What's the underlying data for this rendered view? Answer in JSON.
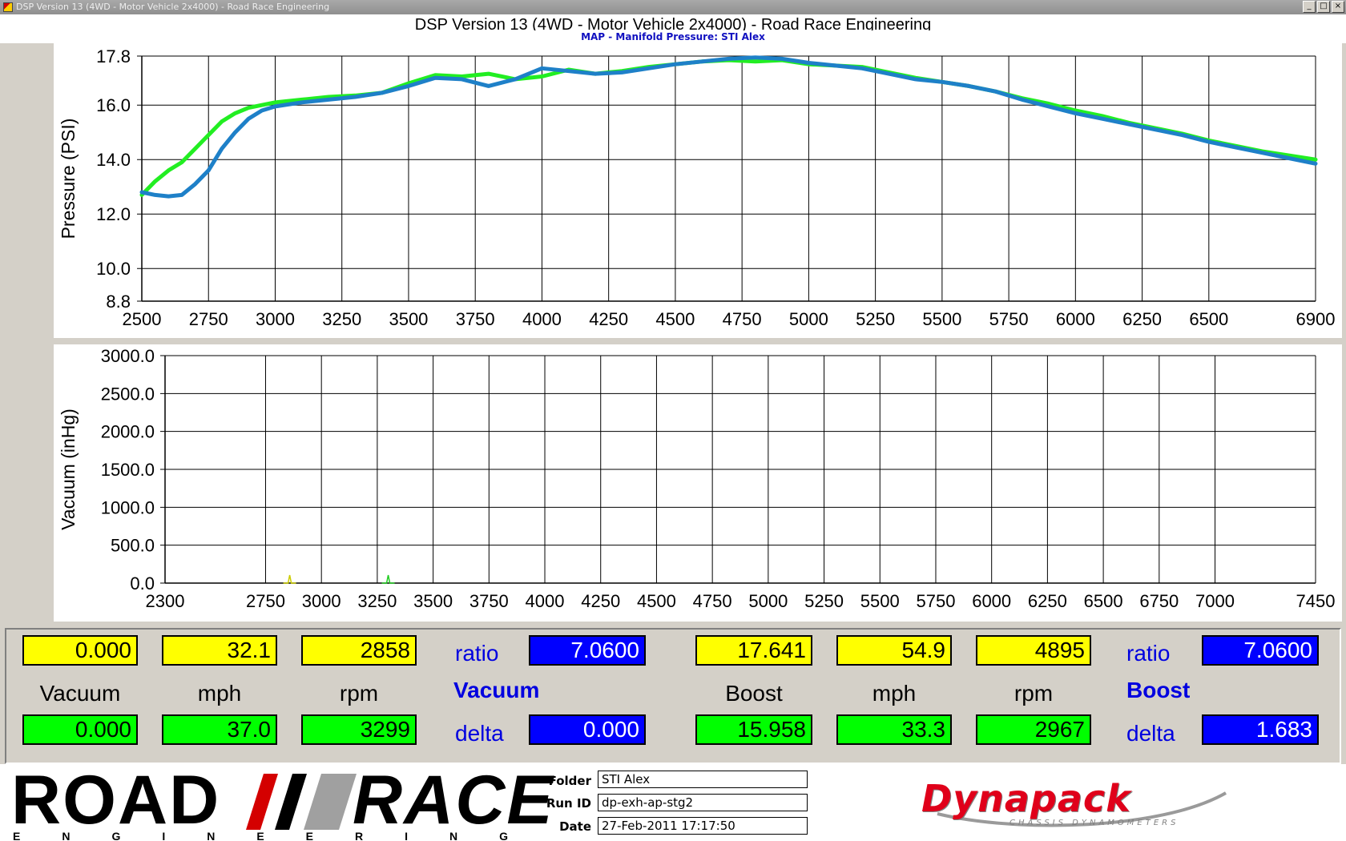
{
  "window": {
    "title": "DSP Version 13 (4WD - Motor Vehicle 2x4000) - Road Race Engineering",
    "buttons": [
      "_",
      "□",
      "×"
    ]
  },
  "main_title": "DSP Version 13 (4WD - Motor Vehicle 2x4000) - Road Race Engineering",
  "plot_title": "MAP - Manifold Pressure: STI Alex",
  "chart_data": [
    {
      "type": "line",
      "ylabel": "Pressure (PSI)",
      "xlim": [
        2500,
        6900
      ],
      "ylim": [
        8.8,
        17.8
      ],
      "x_ticks": [
        "2500",
        "2750",
        "3000",
        "3250",
        "3500",
        "3750",
        "4000",
        "4250",
        "4500",
        "4750",
        "5000",
        "5250",
        "5500",
        "5750",
        "6000",
        "6250",
        "6500",
        "6900"
      ],
      "y_ticks": [
        "17.8",
        "16.0",
        "14.0",
        "12.0",
        "10.0",
        "8.8"
      ],
      "series": [
        {
          "color": "#22ee22",
          "x": [
            2500,
            2550,
            2600,
            2650,
            2700,
            2750,
            2800,
            2850,
            2900,
            2950,
            3000,
            3100,
            3200,
            3300,
            3400,
            3500,
            3600,
            3700,
            3800,
            3900,
            4000,
            4100,
            4200,
            4300,
            4400,
            4500,
            4600,
            4700,
            4800,
            4900,
            5000,
            5100,
            5200,
            5300,
            5400,
            5500,
            5600,
            5700,
            5800,
            5900,
            6000,
            6100,
            6200,
            6300,
            6400,
            6500,
            6600,
            6700,
            6800,
            6900
          ],
          "values": [
            12.7,
            13.2,
            13.6,
            13.9,
            14.4,
            14.9,
            15.4,
            15.7,
            15.9,
            16.0,
            16.1,
            16.2,
            16.3,
            16.35,
            16.45,
            16.8,
            17.1,
            17.05,
            17.15,
            16.95,
            17.05,
            17.3,
            17.15,
            17.25,
            17.4,
            17.5,
            17.6,
            17.65,
            17.6,
            17.65,
            17.5,
            17.45,
            17.4,
            17.2,
            17.0,
            16.85,
            16.7,
            16.5,
            16.25,
            16.05,
            15.8,
            15.6,
            15.35,
            15.15,
            14.95,
            14.7,
            14.5,
            14.3,
            14.15,
            14.0
          ]
        },
        {
          "color": "#1e80c8",
          "x": [
            2500,
            2550,
            2600,
            2650,
            2700,
            2750,
            2800,
            2850,
            2900,
            2950,
            3000,
            3100,
            3200,
            3300,
            3400,
            3500,
            3600,
            3700,
            3800,
            3900,
            4000,
            4100,
            4200,
            4300,
            4400,
            4500,
            4600,
            4700,
            4800,
            4900,
            5000,
            5100,
            5200,
            5300,
            5400,
            5500,
            5600,
            5700,
            5800,
            5900,
            6000,
            6100,
            6200,
            6300,
            6400,
            6500,
            6600,
            6700,
            6800,
            6900
          ],
          "values": [
            12.8,
            12.7,
            12.65,
            12.7,
            13.1,
            13.6,
            14.4,
            15.0,
            15.5,
            15.8,
            15.95,
            16.1,
            16.2,
            16.3,
            16.45,
            16.7,
            17.0,
            16.95,
            16.7,
            16.95,
            17.35,
            17.25,
            17.15,
            17.2,
            17.35,
            17.5,
            17.6,
            17.7,
            17.75,
            17.7,
            17.55,
            17.45,
            17.35,
            17.15,
            16.95,
            16.85,
            16.7,
            16.5,
            16.2,
            15.95,
            15.7,
            15.5,
            15.3,
            15.1,
            14.9,
            14.65,
            14.45,
            14.25,
            14.05,
            13.85
          ]
        }
      ]
    },
    {
      "type": "line",
      "ylabel": "Vacuum (inHg)",
      "xlim": [
        2300,
        7450
      ],
      "ylim": [
        0,
        3000
      ],
      "x_ticks": [
        "2300",
        "2750",
        "3000",
        "3250",
        "3500",
        "3750",
        "4000",
        "4250",
        "4500",
        "4750",
        "5000",
        "5250",
        "5500",
        "5750",
        "6000",
        "6250",
        "6500",
        "6750",
        "7000",
        "7450"
      ],
      "y_ticks": [
        "3000.0",
        "2500.0",
        "2000.0",
        "1500.0",
        "1000.0",
        "500.0",
        "0.0"
      ],
      "series": []
    }
  ],
  "readout": {
    "row1": {
      "vacuum": "0.000",
      "mph": "32.1",
      "rpm": "2858",
      "ratio_label": "ratio",
      "ratio": "7.0600",
      "boost": "17.641",
      "mph2": "54.9",
      "rpm2": "4895",
      "ratio_label2": "ratio",
      "ratio2": "7.0600"
    },
    "labels": {
      "vacuum": "Vacuum",
      "mph": "mph",
      "rpm": "rpm",
      "vacuum_title": "Vacuum",
      "boost": "Boost",
      "mph2": "mph",
      "rpm2": "rpm",
      "boost_title": "Boost"
    },
    "row2": {
      "vacuum": "0.000",
      "mph": "37.0",
      "rpm": "3299",
      "delta_label": "delta",
      "delta": "0.000",
      "boost": "15.958",
      "mph2": "33.3",
      "rpm2": "2967",
      "delta_label2": "delta",
      "delta2": "1.683"
    }
  },
  "footer": {
    "logo_road": "ROAD",
    "logo_race": "RACE",
    "logo_eng": "ENGINEERING",
    "folder_label": "Folder",
    "folder": "STI Alex",
    "runid_label": "Run ID",
    "runid": "dp-exh-ap-stg2",
    "date_label": "Date",
    "date": "27-Feb-2011 17:17:50",
    "dyna_name": "Dynapack",
    "dyna_sub": "CHASSIS DYNAMOMETERS"
  },
  "colors": {
    "yellow": "#ffff00",
    "green": "#00ff00",
    "blue": "#0000ff",
    "label_blue": "#0000e0",
    "brand_red": "#e0001a"
  }
}
